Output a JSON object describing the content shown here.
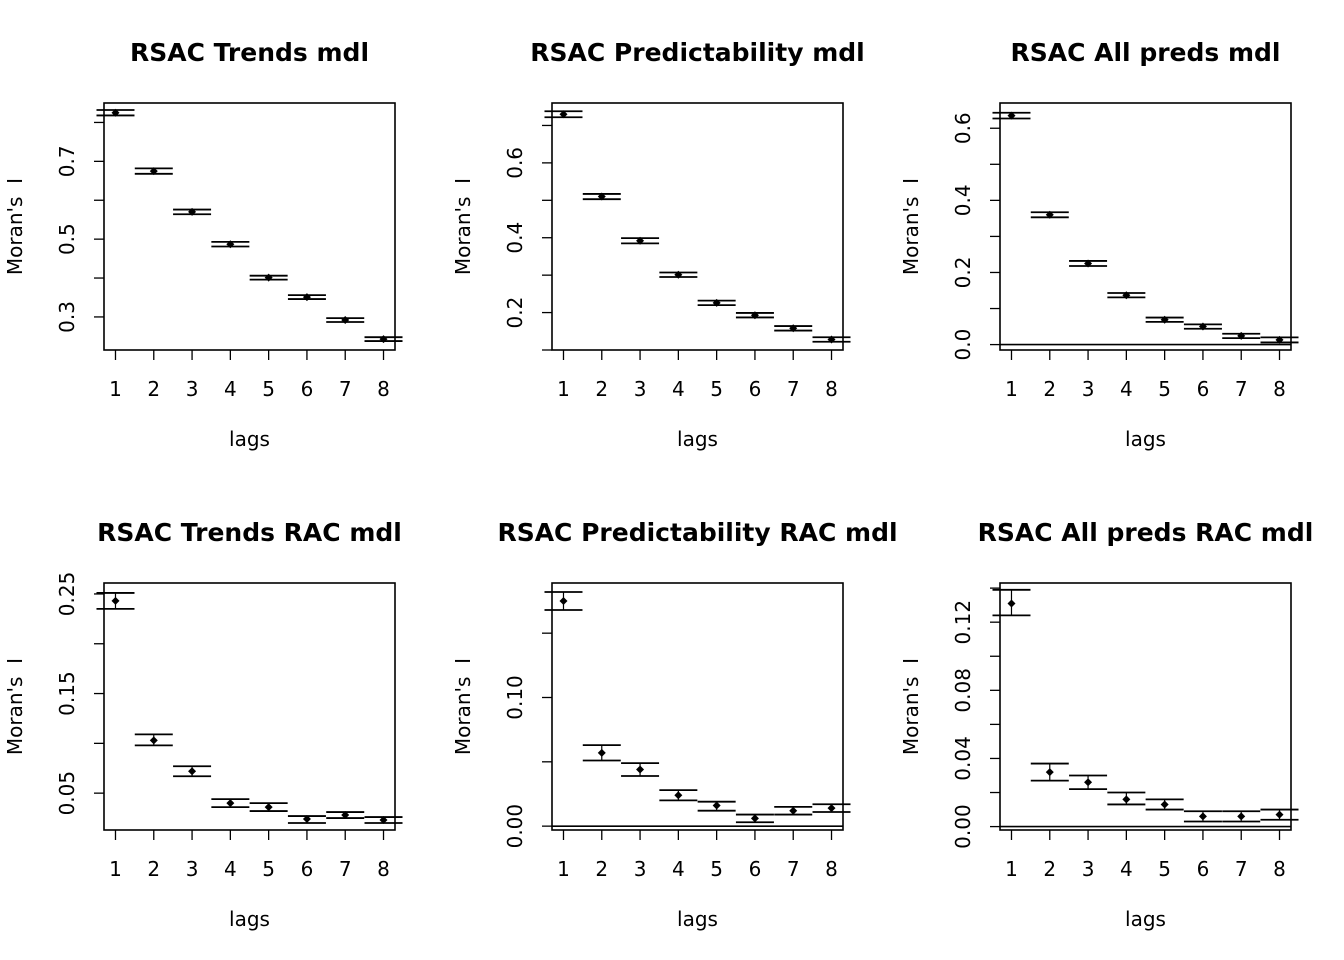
{
  "chart_data": [
    {
      "type": "scatter",
      "title": "RSAC Trends mdl",
      "xlabel": "lags",
      "ylabel": "Moran's  I",
      "x": [
        1,
        2,
        3,
        4,
        5,
        6,
        7,
        8
      ],
      "values": [
        0.825,
        0.675,
        0.57,
        0.487,
        0.401,
        0.351,
        0.292,
        0.243
      ],
      "ci_low": [
        0.818,
        0.668,
        0.564,
        0.481,
        0.396,
        0.346,
        0.287,
        0.238
      ],
      "ci_high": [
        0.832,
        0.682,
        0.576,
        0.493,
        0.406,
        0.356,
        0.297,
        0.248
      ],
      "yticks": [
        0.3,
        0.4,
        0.5,
        0.6,
        0.7,
        0.8
      ],
      "yticklabels": [
        "0.3",
        "",
        "0.5",
        "",
        "0.7",
        ""
      ],
      "ylim": [
        0.215,
        0.85
      ],
      "xlim": [
        0.7,
        8.3
      ],
      "zero_line": false
    },
    {
      "type": "scatter",
      "title": "RSAC Predictability mdl",
      "xlabel": "lags",
      "ylabel": "Moran's  I",
      "x": [
        1,
        2,
        3,
        4,
        5,
        6,
        7,
        8
      ],
      "values": [
        0.73,
        0.51,
        0.392,
        0.301,
        0.226,
        0.193,
        0.158,
        0.128
      ],
      "ci_low": [
        0.722,
        0.503,
        0.385,
        0.295,
        0.22,
        0.187,
        0.152,
        0.122
      ],
      "ci_high": [
        0.738,
        0.517,
        0.399,
        0.307,
        0.232,
        0.199,
        0.164,
        0.134
      ],
      "yticks": [
        0.1,
        0.2,
        0.3,
        0.4,
        0.5,
        0.6,
        0.7
      ],
      "yticklabels": [
        "",
        "0.2",
        "",
        "0.4",
        "",
        "0.6",
        ""
      ],
      "ylim": [
        0.1,
        0.76
      ],
      "xlim": [
        0.7,
        8.3
      ],
      "zero_line": false
    },
    {
      "type": "scatter",
      "title": "RSAC All preds mdl",
      "xlabel": "lags",
      "ylabel": "Moran's  I",
      "x": [
        1,
        2,
        3,
        4,
        5,
        6,
        7,
        8
      ],
      "values": [
        0.635,
        0.36,
        0.225,
        0.137,
        0.069,
        0.05,
        0.024,
        0.013
      ],
      "ci_low": [
        0.627,
        0.353,
        0.218,
        0.131,
        0.063,
        0.044,
        0.018,
        0.006
      ],
      "ci_high": [
        0.643,
        0.367,
        0.232,
        0.143,
        0.075,
        0.056,
        0.03,
        0.02
      ],
      "yticks": [
        0.0,
        0.1,
        0.2,
        0.3,
        0.4,
        0.5,
        0.6
      ],
      "yticklabels": [
        "0.0",
        "",
        "0.2",
        "",
        "0.4",
        "",
        "0.6"
      ],
      "ylim": [
        -0.015,
        0.67
      ],
      "xlim": [
        0.7,
        8.3
      ],
      "zero_line": true
    },
    {
      "type": "scatter",
      "title": "RSAC Trends RAC mdl",
      "xlabel": "lags",
      "ylabel": "Moran's  I",
      "x": [
        1,
        2,
        3,
        4,
        5,
        6,
        7,
        8
      ],
      "values": [
        0.243,
        0.103,
        0.072,
        0.04,
        0.036,
        0.024,
        0.028,
        0.023
      ],
      "ci_low": [
        0.235,
        0.098,
        0.067,
        0.036,
        0.032,
        0.02,
        0.025,
        0.02
      ],
      "ci_high": [
        0.251,
        0.109,
        0.077,
        0.044,
        0.04,
        0.027,
        0.031,
        0.026
      ],
      "yticks": [
        0.05,
        0.1,
        0.15,
        0.2,
        0.25
      ],
      "yticklabels": [
        "0.05",
        "",
        "0.15",
        "",
        "0.25"
      ],
      "ylim": [
        0.013,
        0.261
      ],
      "xlim": [
        0.7,
        8.3
      ],
      "zero_line": false
    },
    {
      "type": "scatter",
      "title": "RSAC Predictability RAC mdl",
      "xlabel": "lags",
      "ylabel": "Moran's  I",
      "x": [
        1,
        2,
        3,
        4,
        5,
        6,
        7,
        8
      ],
      "values": [
        0.175,
        0.057,
        0.044,
        0.024,
        0.016,
        0.006,
        0.012,
        0.014
      ],
      "ci_low": [
        0.168,
        0.051,
        0.039,
        0.02,
        0.012,
        0.003,
        0.009,
        0.011
      ],
      "ci_high": [
        0.182,
        0.063,
        0.049,
        0.028,
        0.019,
        0.009,
        0.015,
        0.017
      ],
      "yticks": [
        0.0,
        0.05,
        0.1,
        0.15
      ],
      "yticklabels": [
        "0.00",
        "",
        "0.10",
        ""
      ],
      "ylim": [
        -0.003,
        0.189
      ],
      "xlim": [
        0.7,
        8.3
      ],
      "zero_line": true
    },
    {
      "type": "scatter",
      "title": "RSAC All preds RAC mdl",
      "xlabel": "lags",
      "ylabel": "Moran's  I",
      "x": [
        1,
        2,
        3,
        4,
        5,
        6,
        7,
        8
      ],
      "values": [
        0.131,
        0.032,
        0.026,
        0.016,
        0.013,
        0.006,
        0.006,
        0.007
      ],
      "ci_low": [
        0.124,
        0.027,
        0.022,
        0.013,
        0.01,
        0.003,
        0.003,
        0.004
      ],
      "ci_high": [
        0.139,
        0.037,
        0.03,
        0.02,
        0.016,
        0.009,
        0.009,
        0.01
      ],
      "yticks": [
        0.0,
        0.02,
        0.04,
        0.06,
        0.08,
        0.1,
        0.12,
        0.14
      ],
      "yticklabels": [
        "0.00",
        "",
        "0.04",
        "",
        "0.08",
        "",
        "0.12",
        ""
      ],
      "ylim": [
        -0.002,
        0.143
      ],
      "xlim": [
        0.7,
        8.3
      ],
      "zero_line": true
    }
  ]
}
